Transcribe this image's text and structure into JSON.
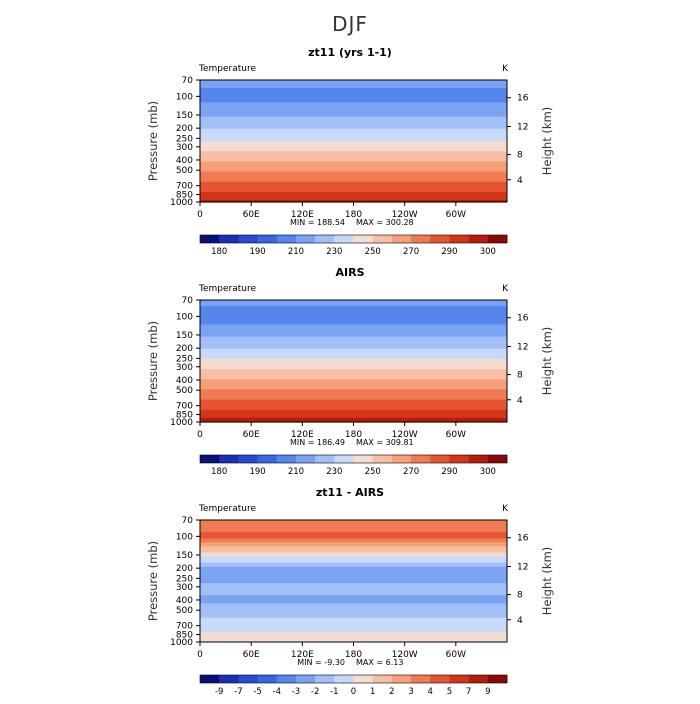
{
  "page_title": "DJF",
  "chart_data": [
    {
      "type": "heatmap",
      "title": "zt11 (yrs 1-1)",
      "field_label": "Temperature",
      "unit": "K",
      "xlabel": "",
      "ylabel": "Pressure (mb)",
      "ylabel_right": "Height (km)",
      "x_ticks": [
        "0",
        "60E",
        "120E",
        "180",
        "120W",
        "60W"
      ],
      "y_ticks": [
        "70",
        "100",
        "150",
        "200",
        "250",
        "300",
        "400",
        "500",
        "700",
        "850",
        "1000"
      ],
      "y_ticks_right": [
        "16",
        "12",
        "8",
        "4"
      ],
      "stats": {
        "min_label": "MIN = 188.54",
        "max_label": "MAX = 300.28"
      },
      "colorbar_labels": [
        "180",
        "190",
        "210",
        "230",
        "250",
        "270",
        "290",
        "300"
      ],
      "levels": [
        175,
        180,
        185,
        190,
        200,
        210,
        220,
        230,
        240,
        250,
        260,
        270,
        280,
        290,
        295,
        300
      ],
      "profile": [
        [
          70,
          205
        ],
        [
          100,
          196
        ],
        [
          150,
          208
        ],
        [
          200,
          219
        ],
        [
          250,
          227
        ],
        [
          300,
          236
        ],
        [
          400,
          249
        ],
        [
          500,
          259
        ],
        [
          700,
          274
        ],
        [
          850,
          283
        ],
        [
          1000,
          293
        ]
      ]
    },
    {
      "type": "heatmap",
      "title": "AIRS",
      "field_label": "Temperature",
      "unit": "K",
      "xlabel": "",
      "ylabel": "Pressure (mb)",
      "ylabel_right": "Height (km)",
      "x_ticks": [
        "0",
        "60E",
        "120E",
        "180",
        "120W",
        "60W"
      ],
      "y_ticks": [
        "70",
        "100",
        "150",
        "200",
        "250",
        "300",
        "400",
        "500",
        "700",
        "850",
        "1000"
      ],
      "y_ticks_right": [
        "16",
        "12",
        "8",
        "4"
      ],
      "stats": {
        "min_label": "MIN = 186.49",
        "max_label": "MAX = 309.81"
      },
      "colorbar_labels": [
        "180",
        "190",
        "210",
        "230",
        "250",
        "270",
        "290",
        "300"
      ],
      "levels": [
        175,
        180,
        185,
        190,
        200,
        210,
        220,
        230,
        240,
        250,
        260,
        270,
        280,
        290,
        295,
        300
      ],
      "profile": [
        [
          70,
          203
        ],
        [
          100,
          194
        ],
        [
          150,
          209
        ],
        [
          200,
          220
        ],
        [
          250,
          229
        ],
        [
          300,
          238
        ],
        [
          400,
          251
        ],
        [
          500,
          261
        ],
        [
          700,
          276
        ],
        [
          850,
          285
        ],
        [
          1000,
          294
        ]
      ]
    },
    {
      "type": "heatmap",
      "title": "zt11 - AIRS",
      "field_label": "Temperature",
      "unit": "K",
      "xlabel": "",
      "ylabel": "Pressure (mb)",
      "ylabel_right": "Height (km)",
      "x_ticks": [
        "0",
        "60E",
        "120E",
        "180",
        "120W",
        "60W"
      ],
      "y_ticks": [
        "70",
        "100",
        "150",
        "200",
        "250",
        "300",
        "400",
        "500",
        "700",
        "850",
        "1000"
      ],
      "y_ticks_right": [
        "16",
        "12",
        "8",
        "4"
      ],
      "stats": {
        "min_label": "MIN =   -9.30",
        "max_label": "MAX =    6.13"
      },
      "colorbar_labels": [
        "-9",
        "-7",
        "-5",
        "-4",
        "-3",
        "-2",
        "-1",
        "0",
        "1",
        "2",
        "3",
        "4",
        "5",
        "7",
        "9"
      ],
      "levels": [
        -9,
        -7,
        -5,
        -4,
        -3,
        -2,
        -1,
        0,
        1,
        2,
        3,
        4,
        5,
        7,
        9
      ],
      "profile": [
        [
          70,
          3.5
        ],
        [
          100,
          4.2
        ],
        [
          150,
          0.5
        ],
        [
          200,
          -2.2
        ],
        [
          250,
          -2.6
        ],
        [
          300,
          -1.6
        ],
        [
          400,
          -2.3
        ],
        [
          500,
          -1.2
        ],
        [
          700,
          -0.8
        ],
        [
          850,
          0.3
        ],
        [
          1000,
          0.8
        ]
      ]
    }
  ],
  "colormap": [
    "#0a0f7a",
    "#1a2fb8",
    "#2749d6",
    "#3766e6",
    "#5486ee",
    "#7aa3f3",
    "#a2c0f7",
    "#c8daf9",
    "#f4ddd0",
    "#f7c0a4",
    "#f59f7b",
    "#f07a52",
    "#e55530",
    "#d43519",
    "#b51c0c",
    "#8a0808"
  ]
}
